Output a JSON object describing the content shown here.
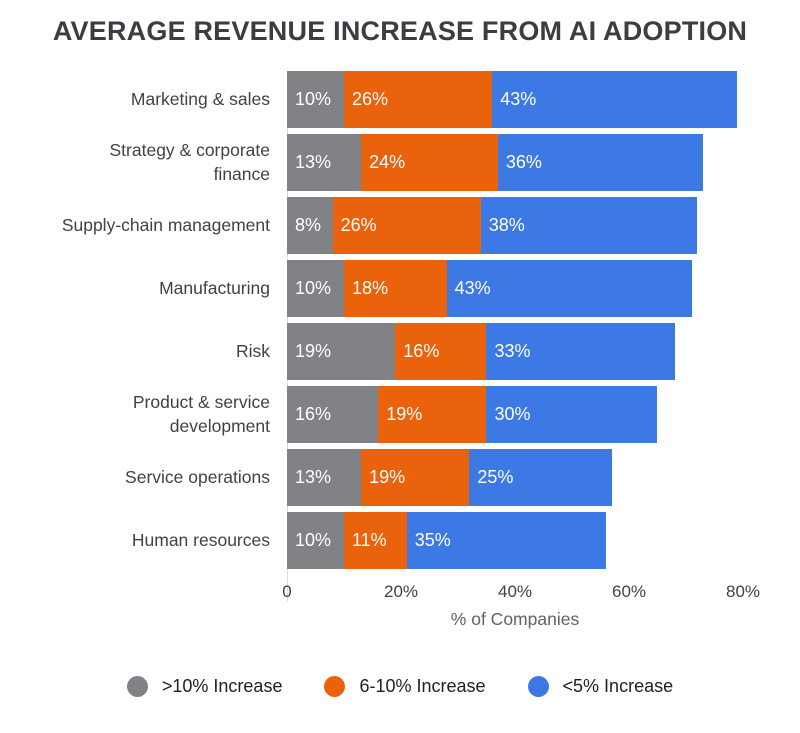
{
  "title": "AVERAGE REVENUE INCREASE FROM AI ADOPTION",
  "chart_data": {
    "type": "bar",
    "orientation": "horizontal",
    "stacked": true,
    "title": "AVERAGE REVENUE INCREASE FROM AI ADOPTION",
    "categories": [
      "Marketing & sales",
      "Strategy & corporate finance",
      "Supply-chain management",
      "Manufacturing",
      "Product & service development",
      "Service operations",
      "Human resources"
    ],
    "categories_note": "category index 4 is Risk - full ordered list in categories_full",
    "categories_full": [
      "Marketing & sales",
      "Strategy & corporate finance",
      "Supply-chain management",
      "Manufacturing",
      "Risk",
      "Product & service development",
      "Service operations",
      "Human resources"
    ],
    "series": [
      {
        "name": ">10% Increase",
        "color": "#808285",
        "values": [
          10,
          13,
          8,
          10,
          19,
          16,
          13,
          10
        ]
      },
      {
        "name": "6-10% Increase",
        "color": "#EA630C",
        "values": [
          26,
          24,
          26,
          18,
          16,
          19,
          19,
          11
        ]
      },
      {
        "name": "<5% Increase",
        "color": "#3D79E5",
        "values": [
          43,
          36,
          38,
          43,
          33,
          30,
          25,
          35
        ]
      }
    ],
    "bar_label_suffix": "%",
    "xlabel": "% of Companies",
    "x_ticks": [
      "0",
      "20%",
      "40%",
      "60%",
      "80%"
    ],
    "xlim": [
      0,
      80
    ],
    "grid": false,
    "legend_position": "bottom",
    "axis_line_color": "#dadce0"
  }
}
